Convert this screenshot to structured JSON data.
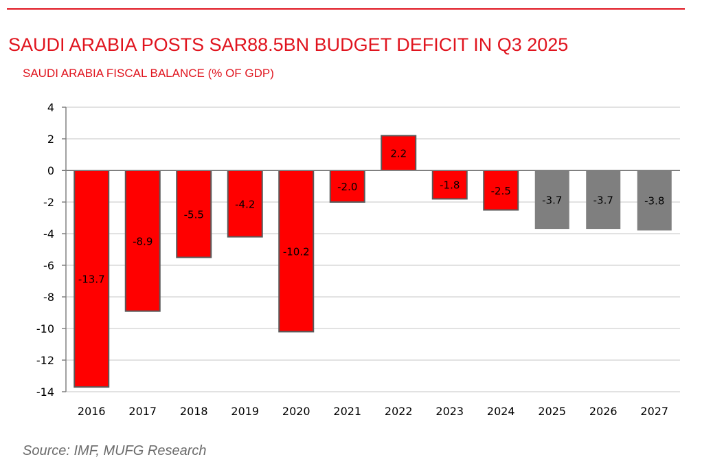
{
  "header": {
    "title": "SAUDI ARABIA POSTS SAR88.5BN BUDGET DEFICIT IN Q3 2025",
    "subtitle": "SAUDI ARABIA FISCAL BALANCE (% OF GDP)"
  },
  "footer": {
    "source": "Source: IMF, MUFG Research"
  },
  "colors": {
    "accent": "#e0141e",
    "actual_bar": "#ff0000",
    "forecast_bar": "#7f7f7f",
    "bar_outline": "#595959",
    "grid": "#d9d9d9",
    "axis": "#808080"
  },
  "chart_data": {
    "type": "bar",
    "title": "SAUDI ARABIA FISCAL BALANCE (% OF GDP)",
    "xlabel": "",
    "ylabel": "",
    "ylim": [
      -14,
      4
    ],
    "yticks": [
      4,
      2,
      0,
      -2,
      -4,
      -6,
      -8,
      -10,
      -12,
      -14
    ],
    "grid": true,
    "categories": [
      "2016",
      "2017",
      "2018",
      "2019",
      "2020",
      "2021",
      "2022",
      "2023",
      "2024",
      "2025",
      "2026",
      "2027"
    ],
    "values": [
      -13.7,
      -8.9,
      -5.5,
      -4.2,
      -10.2,
      -2.0,
      2.2,
      -1.8,
      -2.5,
      -3.7,
      -3.7,
      -3.8
    ],
    "labels": [
      "-13.7",
      "-8.9",
      "-5.5",
      "-4.2",
      "-10.2",
      "-2.0",
      "2.2",
      "-1.8",
      "-2.5",
      "-3.7",
      "-3.7",
      "-3.8"
    ],
    "forecast": [
      false,
      false,
      false,
      false,
      false,
      false,
      false,
      false,
      false,
      true,
      true,
      true
    ]
  }
}
